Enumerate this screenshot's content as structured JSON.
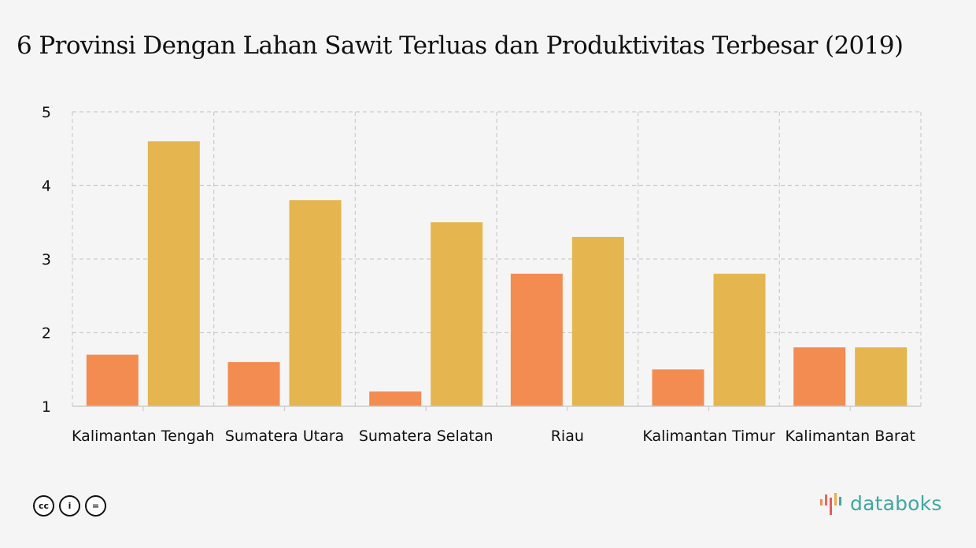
{
  "title": "6 Provinsi Dengan Lahan Sawit Terluas dan Produktivitas Terbesar (2019)",
  "chart_data": {
    "type": "bar",
    "categories": [
      "Kalimantan Tengah",
      "Sumatera Utara",
      "Sumatera Selatan",
      "Riau",
      "Kalimantan Timur",
      "Kalimantan Barat"
    ],
    "series": [
      {
        "values": [
          1.7,
          1.6,
          1.2,
          2.8,
          1.5,
          1.8
        ],
        "color": "#f28c50"
      },
      {
        "values": [
          4.6,
          3.8,
          3.5,
          3.3,
          2.8,
          1.8
        ],
        "color": "#e5b54f"
      }
    ],
    "yticks": [
      "1",
      "2",
      "3",
      "4",
      "5"
    ],
    "ylim": [
      1,
      5
    ],
    "grid": true
  },
  "footer": {
    "license_icons": [
      "cc",
      "i",
      "="
    ],
    "logo_text": "databoks",
    "logo_color": "#3fa7a0"
  }
}
